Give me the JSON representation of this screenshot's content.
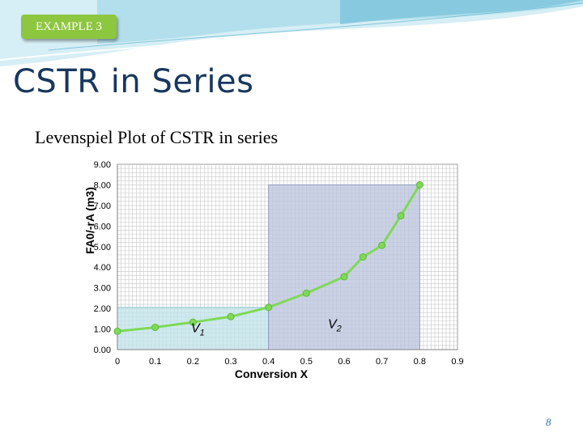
{
  "slide": {
    "tag": "EXAMPLE 3",
    "title": "CSTR in Series",
    "subtitle": "Levenspiel Plot of CSTR in series",
    "page_number": "8"
  },
  "colors": {
    "banner_light": "#d6eef5",
    "banner_dark": "#7fc6dc",
    "tag_green": "#8dc63f",
    "title_navy": "#17375e",
    "series_green": "#7ed957",
    "v1_fill": "#bfe3ea",
    "v2_fill": "#bac3dd",
    "grid": "#c8c8c8"
  },
  "chart_data": {
    "type": "line",
    "title": "",
    "xlabel": "Conversion X",
    "ylabel": "FA0/-rA (m3)",
    "xlim": [
      0,
      0.9
    ],
    "ylim": [
      0,
      9
    ],
    "x_ticks": [
      "0",
      "0.1",
      "0.2",
      "0.3",
      "0.4",
      "0.5",
      "0.6",
      "0.7",
      "0.8",
      "0.9"
    ],
    "y_ticks": [
      "0.00",
      "1.00",
      "2.00",
      "3.00",
      "4.00",
      "5.00",
      "6.00",
      "7.00",
      "8.00",
      "9.00"
    ],
    "grid": true,
    "series": [
      {
        "x": [
          0,
          0.1,
          0.2,
          0.3,
          0.4,
          0.5,
          0.6,
          0.65,
          0.7,
          0.75,
          0.8
        ],
        "y": [
          0.89,
          1.08,
          1.33,
          1.6,
          2.05,
          2.74,
          3.54,
          4.5,
          5.06,
          6.5,
          8.0
        ]
      }
    ],
    "regions": [
      {
        "label": "V",
        "subscript": "1",
        "x_start": 0,
        "x_end": 0.4,
        "height": 2.05
      },
      {
        "label": "V",
        "subscript": "2",
        "x_start": 0.4,
        "x_end": 0.8,
        "height": 8.0
      }
    ]
  }
}
